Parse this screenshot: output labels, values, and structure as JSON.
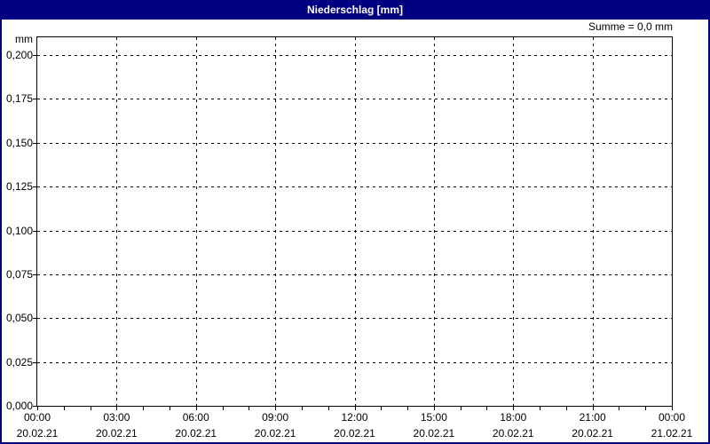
{
  "window": {
    "title": "Niederschlag [mm]",
    "titlebar_color": "#000080",
    "border_color": "#000080",
    "background_color": "#ffffff"
  },
  "header": {
    "summary_label": "Summe = 0,0 mm"
  },
  "chart_data": {
    "type": "line",
    "title": "Niederschlag [mm]",
    "unit_label": "mm",
    "sum_label": "Summe = 0,0 mm",
    "grid": "dashed",
    "grid_color": "#000000",
    "legend_position": "none",
    "ylim": [
      0,
      0.21
    ],
    "y_ticks": [
      {
        "v": 0.2,
        "label": "0,200"
      },
      {
        "v": 0.175,
        "label": "0,175"
      },
      {
        "v": 0.15,
        "label": "0,150"
      },
      {
        "v": 0.125,
        "label": "0,125"
      },
      {
        "v": 0.1,
        "label": "0,100"
      },
      {
        "v": 0.075,
        "label": "0,075"
      },
      {
        "v": 0.05,
        "label": "0,050"
      },
      {
        "v": 0.025,
        "label": "0,025"
      },
      {
        "v": 0.0,
        "label": "0,000"
      }
    ],
    "x_ticks": [
      {
        "time": "00:00",
        "date": "20.02.21"
      },
      {
        "time": "03:00",
        "date": "20.02.21"
      },
      {
        "time": "06:00",
        "date": "20.02.21"
      },
      {
        "time": "09:00",
        "date": "20.02.21"
      },
      {
        "time": "12:00",
        "date": "20.02.21"
      },
      {
        "time": "15:00",
        "date": "20.02.21"
      },
      {
        "time": "18:00",
        "date": "20.02.21"
      },
      {
        "time": "21:00",
        "date": "20.02.21"
      },
      {
        "time": "00:00",
        "date": "21.02.21"
      }
    ],
    "minor_ticks_per_interval": 3,
    "series": [
      {
        "name": "Niederschlag",
        "values": []
      }
    ]
  }
}
